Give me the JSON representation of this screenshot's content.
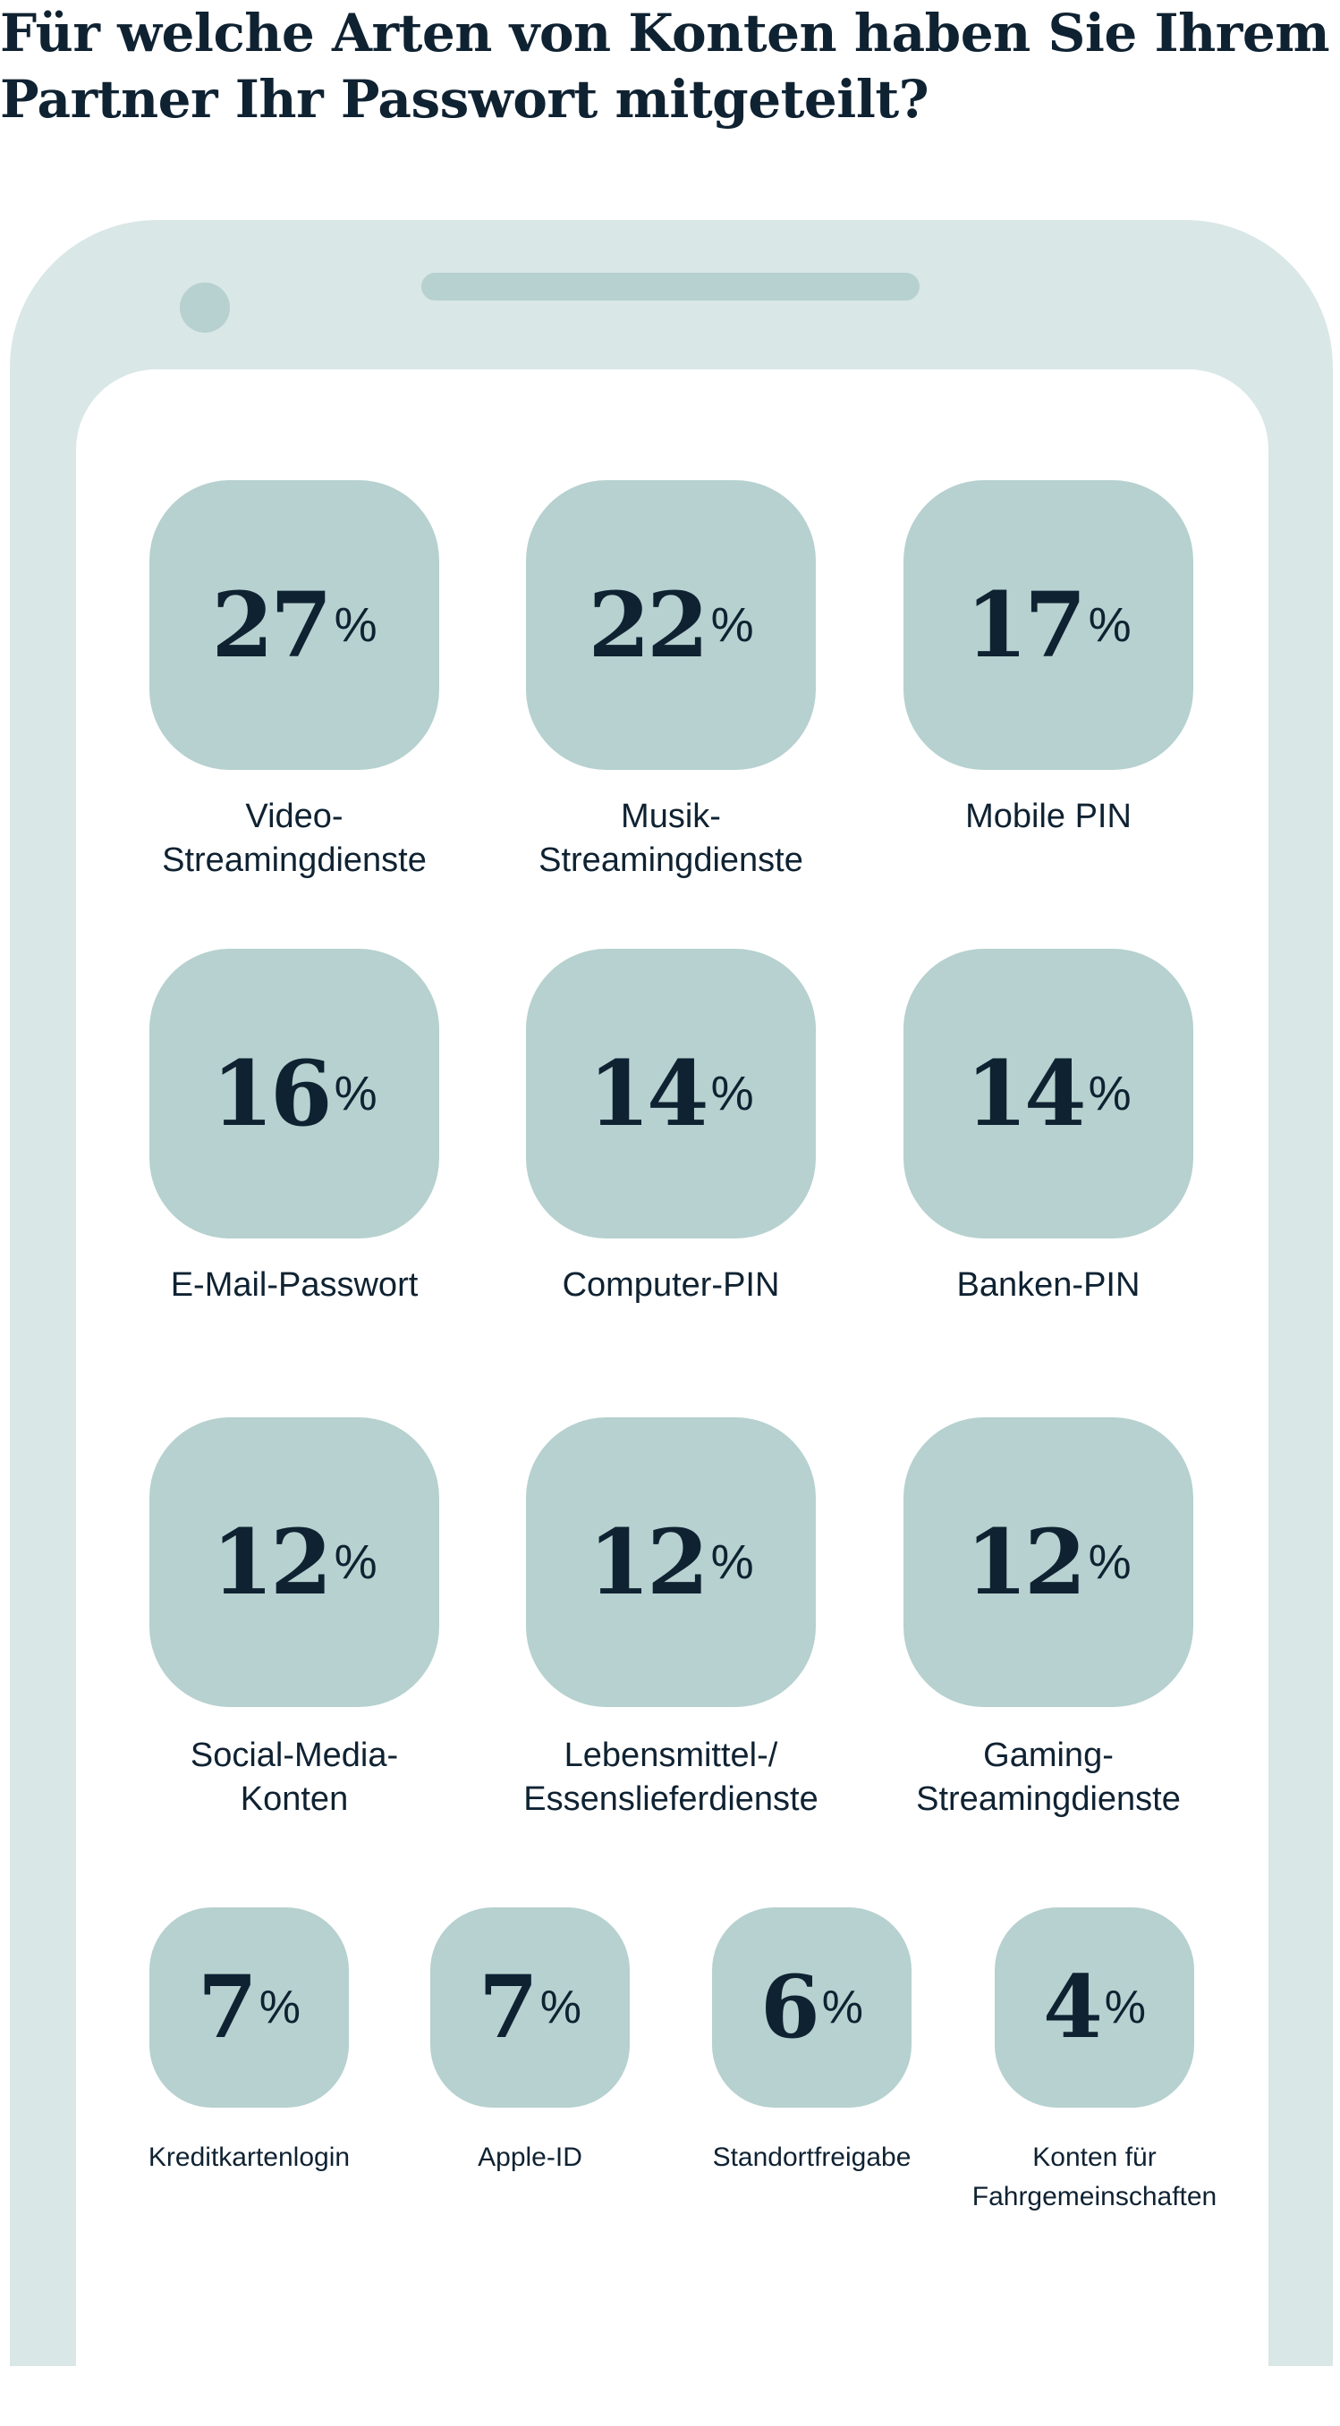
{
  "title": "Für welche Arten von Konten haben Sie Ihrem Partner Ihr Passwort mitgeteilt?",
  "percent_sign": "%",
  "colors": {
    "frame": "#d9e7e6",
    "tile": "#b6d1cf",
    "text": "#0f2232"
  },
  "items": [
    {
      "value": "27",
      "label": "Video-\nStreamingdienste"
    },
    {
      "value": "22",
      "label": "Musik-\nStreamingdienste"
    },
    {
      "value": "17",
      "label": "Mobile PIN"
    },
    {
      "value": "16",
      "label": "E-Mail-Passwort"
    },
    {
      "value": "14",
      "label": "Computer-PIN"
    },
    {
      "value": "14",
      "label": "Banken-PIN"
    },
    {
      "value": "12",
      "label": "Social-Media-\nKonten"
    },
    {
      "value": "12",
      "label": "Lebensmittel-/\nEssenslieferdienste"
    },
    {
      "value": "12",
      "label": "Gaming-\nStreamingdienste"
    },
    {
      "value": "7",
      "label": "Kreditkartenlogin"
    },
    {
      "value": "7",
      "label": "Apple-ID"
    },
    {
      "value": "6",
      "label": "Standortfreigabe"
    },
    {
      "value": "4",
      "label": "Konten für\nFahrgemeinschaften"
    }
  ]
}
